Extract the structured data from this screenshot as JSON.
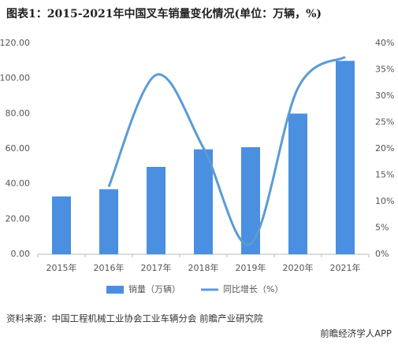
{
  "chart_data": {
    "type": "bar-line",
    "title": "图表1：2015-2021年中国叉车销量变化情况(单位：万辆，%)",
    "categories": [
      "2015年",
      "2016年",
      "2017年",
      "2018年",
      "2019年",
      "2020年",
      "2021年"
    ],
    "series": [
      {
        "name": "销量（万辆）",
        "color": "#4a8fe0",
        "type": "bar",
        "values": [
          32.9,
          37.0,
          49.7,
          59.7,
          60.9,
          80.0,
          110.0
        ]
      },
      {
        "name": "同比增长（%）",
        "color": "#5b9bd5",
        "type": "line",
        "axis": "y2",
        "values": [
          null,
          12.8,
          34.0,
          20.2,
          2.0,
          31.5,
          37.4
        ]
      }
    ],
    "ylim": [
      0,
      120
    ],
    "yticks": [
      {
        "value": 0,
        "label": "0.00"
      },
      {
        "value": 20,
        "label": "20.00"
      },
      {
        "value": 40,
        "label": "40.00"
      },
      {
        "value": 60,
        "label": "60.00"
      },
      {
        "value": 80,
        "label": "80.00"
      },
      {
        "value": 100,
        "label": "100.00"
      },
      {
        "value": 120,
        "label": "120.00"
      }
    ],
    "y2lim": [
      0,
      40
    ],
    "y2ticks": [
      {
        "value": 0,
        "label": "0%"
      },
      {
        "value": 5,
        "label": "5%"
      },
      {
        "value": 10,
        "label": "10%"
      },
      {
        "value": 15,
        "label": "15%"
      },
      {
        "value": 20,
        "label": "20%"
      },
      {
        "value": 25,
        "label": "25%"
      },
      {
        "value": 30,
        "label": "30%"
      },
      {
        "value": 35,
        "label": "35%"
      },
      {
        "value": 40,
        "label": "40%"
      }
    ],
    "legend": "bottom",
    "source": "资料来源：中国工程机械工业协会工业车辆分会 前瞻产业研究院",
    "footer": "前瞻经济学人APP"
  }
}
